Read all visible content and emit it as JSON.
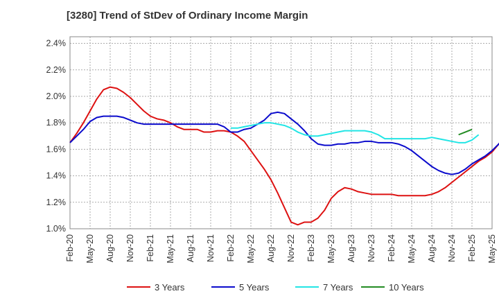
{
  "chart_data": {
    "type": "line",
    "title": "[3280]  Trend of StDev of Ordinary Income Margin",
    "xlabel": "",
    "ylabel": "",
    "y_ticks": [
      "1.0%",
      "1.2%",
      "1.4%",
      "1.6%",
      "1.8%",
      "2.0%",
      "2.2%",
      "2.4%"
    ],
    "ylim": [
      1.0,
      2.45
    ],
    "x_ticks": [
      "Feb-20",
      "May-20",
      "Aug-20",
      "Nov-20",
      "Feb-21",
      "May-21",
      "Aug-21",
      "Nov-21",
      "Feb-22",
      "May-22",
      "Aug-22",
      "Nov-22",
      "Feb-23",
      "May-23",
      "Aug-23",
      "Nov-23",
      "Feb-24",
      "May-24",
      "Aug-24",
      "Nov-24",
      "Feb-25",
      "May-25"
    ],
    "xlim": [
      "Feb-20",
      "May-25"
    ],
    "grid": true,
    "legend_position": "bottom",
    "series": [
      {
        "name": "3 Years",
        "color": "#dd1111",
        "start": "Feb-20",
        "values": [
          1.65,
          1.72,
          1.8,
          1.89,
          1.98,
          2.05,
          2.07,
          2.06,
          2.03,
          1.99,
          1.94,
          1.89,
          1.85,
          1.83,
          1.82,
          1.8,
          1.77,
          1.75,
          1.75,
          1.75,
          1.73,
          1.73,
          1.74,
          1.74,
          1.73,
          1.7,
          1.66,
          1.59,
          1.52,
          1.45,
          1.37,
          1.27,
          1.16,
          1.05,
          1.03,
          1.05,
          1.05,
          1.08,
          1.14,
          1.23,
          1.28,
          1.31,
          1.3,
          1.28,
          1.27,
          1.26,
          1.26,
          1.26,
          1.26,
          1.25,
          1.25,
          1.25,
          1.25,
          1.25,
          1.26,
          1.28,
          1.31,
          1.35,
          1.39,
          1.43,
          1.47,
          1.51,
          1.54,
          1.58,
          1.64,
          1.7
        ]
      },
      {
        "name": "5 Years",
        "color": "#0a0acc",
        "start": "Feb-20",
        "values": [
          1.65,
          1.7,
          1.75,
          1.81,
          1.84,
          1.85,
          1.85,
          1.85,
          1.84,
          1.82,
          1.8,
          1.79,
          1.79,
          1.79,
          1.79,
          1.79,
          1.79,
          1.79,
          1.79,
          1.79,
          1.79,
          1.79,
          1.79,
          1.77,
          1.73,
          1.73,
          1.75,
          1.76,
          1.79,
          1.82,
          1.87,
          1.88,
          1.87,
          1.83,
          1.79,
          1.74,
          1.68,
          1.64,
          1.63,
          1.63,
          1.64,
          1.64,
          1.65,
          1.65,
          1.66,
          1.66,
          1.65,
          1.65,
          1.65,
          1.64,
          1.62,
          1.59,
          1.55,
          1.51,
          1.47,
          1.44,
          1.42,
          1.41,
          1.42,
          1.45,
          1.49,
          1.52,
          1.55,
          1.59,
          1.64,
          1.7
        ]
      },
      {
        "name": "7 Years",
        "color": "#22e5e5",
        "start": "Feb-22",
        "values": [
          1.76,
          1.76,
          1.77,
          1.78,
          1.79,
          1.8,
          1.8,
          1.79,
          1.78,
          1.76,
          1.73,
          1.71,
          1.7,
          1.7,
          1.71,
          1.72,
          1.73,
          1.74,
          1.74,
          1.74,
          1.74,
          1.73,
          1.71,
          1.68,
          1.68,
          1.68,
          1.68,
          1.68,
          1.68,
          1.68,
          1.69,
          1.68,
          1.67,
          1.66,
          1.65,
          1.65,
          1.67,
          1.71
        ]
      },
      {
        "name": "10 Years",
        "color": "#228b22",
        "start": "Dec-24",
        "values": [
          1.71,
          1.73,
          1.75
        ]
      }
    ]
  }
}
